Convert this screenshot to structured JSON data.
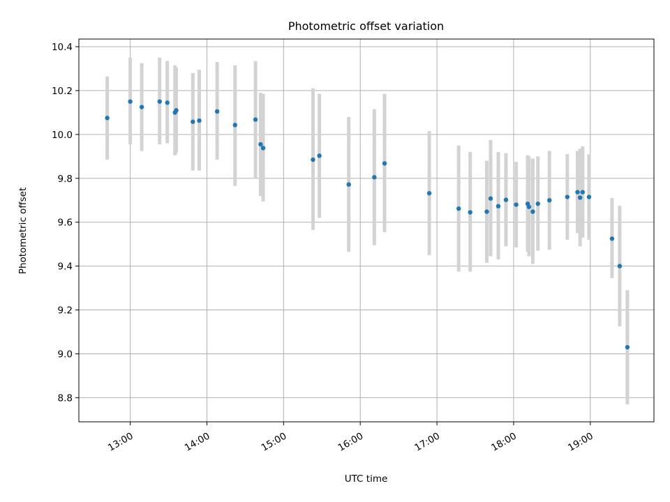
{
  "chart_data": {
    "type": "scatter",
    "title": "Photometric offset variation",
    "xlabel": "UTC time",
    "ylabel": "Photometric offset",
    "x_unit": "UTC hours",
    "xlim": [
      12.33,
      19.83
    ],
    "ylim": [
      8.69,
      10.435
    ],
    "x_ticks": [
      {
        "value": 13,
        "label": "13:00"
      },
      {
        "value": 14,
        "label": "14:00"
      },
      {
        "value": 15,
        "label": "15:00"
      },
      {
        "value": 16,
        "label": "16:00"
      },
      {
        "value": 17,
        "label": "17:00"
      },
      {
        "value": 18,
        "label": "18:00"
      },
      {
        "value": 19,
        "label": "19:00"
      }
    ],
    "y_ticks": [
      {
        "value": 8.8,
        "label": "8.8"
      },
      {
        "value": 9.0,
        "label": "9.0"
      },
      {
        "value": 9.2,
        "label": "9.2"
      },
      {
        "value": 9.4,
        "label": "9.4"
      },
      {
        "value": 9.6,
        "label": "9.6"
      },
      {
        "value": 9.8,
        "label": "9.8"
      },
      {
        "value": 10.0,
        "label": "10.0"
      },
      {
        "value": 10.2,
        "label": "10.2"
      },
      {
        "value": 10.4,
        "label": "10.4"
      }
    ],
    "grid": true,
    "colors": {
      "points": "#1f77b4",
      "errorbars": "#d3d3d3",
      "grid": "#b0b0b0"
    },
    "points": [
      {
        "time": "12:42",
        "y": 10.075,
        "y_low": 9.885,
        "y_high": 10.265
      },
      {
        "time": "13:00",
        "y": 10.15,
        "y_low": 9.955,
        "y_high": 10.35
      },
      {
        "time": "13:09",
        "y": 10.125,
        "y_low": 9.925,
        "y_high": 10.325
      },
      {
        "time": "13:23",
        "y": 10.15,
        "y_low": 9.955,
        "y_high": 10.35
      },
      {
        "time": "13:29",
        "y": 10.145,
        "y_low": 9.96,
        "y_high": 10.335
      },
      {
        "time": "13:35",
        "y": 10.1,
        "y_low": 9.905,
        "y_high": 10.315
      },
      {
        "time": "13:36",
        "y": 10.11,
        "y_low": 9.915,
        "y_high": 10.305
      },
      {
        "time": "13:49",
        "y": 10.058,
        "y_low": 9.835,
        "y_high": 10.28
      },
      {
        "time": "13:54",
        "y": 10.063,
        "y_low": 9.835,
        "y_high": 10.295
      },
      {
        "time": "14:08",
        "y": 10.105,
        "y_low": 9.885,
        "y_high": 10.33
      },
      {
        "time": "14:22",
        "y": 10.043,
        "y_low": 9.765,
        "y_high": 10.315
      },
      {
        "time": "14:38",
        "y": 10.068,
        "y_low": 9.8,
        "y_high": 10.335
      },
      {
        "time": "14:42",
        "y": 9.955,
        "y_low": 9.72,
        "y_high": 10.19
      },
      {
        "time": "14:44",
        "y": 9.938,
        "y_low": 9.695,
        "y_high": 10.185
      },
      {
        "time": "15:23",
        "y": 9.885,
        "y_low": 9.565,
        "y_high": 10.21
      },
      {
        "time": "15:28",
        "y": 9.903,
        "y_low": 9.62,
        "y_high": 10.185
      },
      {
        "time": "15:51",
        "y": 9.772,
        "y_low": 9.465,
        "y_high": 10.08
      },
      {
        "time": "16:11",
        "y": 9.805,
        "y_low": 9.495,
        "y_high": 10.115
      },
      {
        "time": "16:19",
        "y": 9.868,
        "y_low": 9.555,
        "y_high": 10.185
      },
      {
        "time": "16:54",
        "y": 9.732,
        "y_low": 9.45,
        "y_high": 10.015
      },
      {
        "time": "17:17",
        "y": 9.662,
        "y_low": 9.375,
        "y_high": 9.95
      },
      {
        "time": "17:26",
        "y": 9.645,
        "y_low": 9.375,
        "y_high": 9.92
      },
      {
        "time": "17:39",
        "y": 9.648,
        "y_low": 9.415,
        "y_high": 9.88
      },
      {
        "time": "17:42",
        "y": 9.708,
        "y_low": 9.445,
        "y_high": 9.975
      },
      {
        "time": "17:48",
        "y": 9.673,
        "y_low": 9.43,
        "y_high": 9.92
      },
      {
        "time": "17:54",
        "y": 9.702,
        "y_low": 9.49,
        "y_high": 9.915
      },
      {
        "time": "18:02",
        "y": 9.68,
        "y_low": 9.485,
        "y_high": 9.875
      },
      {
        "time": "18:11",
        "y": 9.684,
        "y_low": 9.465,
        "y_high": 9.905
      },
      {
        "time": "18:12",
        "y": 9.67,
        "y_low": 9.445,
        "y_high": 9.9
      },
      {
        "time": "18:15",
        "y": 9.648,
        "y_low": 9.41,
        "y_high": 9.89
      },
      {
        "time": "18:19",
        "y": 9.684,
        "y_low": 9.47,
        "y_high": 9.9
      },
      {
        "time": "18:28",
        "y": 9.7,
        "y_low": 9.475,
        "y_high": 9.925
      },
      {
        "time": "18:42",
        "y": 9.715,
        "y_low": 9.52,
        "y_high": 9.91
      },
      {
        "time": "18:50",
        "y": 9.737,
        "y_low": 9.55,
        "y_high": 9.925
      },
      {
        "time": "18:52",
        "y": 9.712,
        "y_low": 9.49,
        "y_high": 9.935
      },
      {
        "time": "18:54",
        "y": 9.737,
        "y_low": 9.53,
        "y_high": 9.945
      },
      {
        "time": "18:59",
        "y": 9.715,
        "y_low": 9.52,
        "y_high": 9.91
      },
      {
        "time": "19:17",
        "y": 9.525,
        "y_low": 9.345,
        "y_high": 9.71
      },
      {
        "time": "19:23",
        "y": 9.4,
        "y_low": 9.125,
        "y_high": 9.675
      },
      {
        "time": "19:29",
        "y": 9.03,
        "y_low": 8.77,
        "y_high": 9.29
      }
    ]
  }
}
